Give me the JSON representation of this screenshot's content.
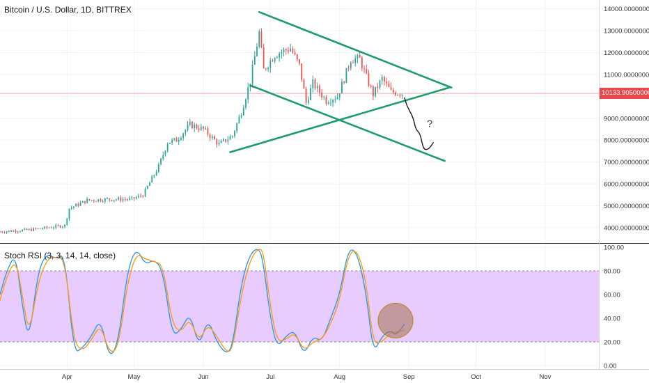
{
  "header": {
    "main_title": "Bitcoin / U.S. Dollar, 1D, BITTREX",
    "indicator_title": "Stoch RSI (3, 3, 14, 14, close)",
    "current_price_label": "10133.905000000",
    "annotation_mark": "?"
  },
  "colors": {
    "up": "#26a69a",
    "down": "#ef5350",
    "trendline": "#1a9c6b",
    "k_line": "#2196f3",
    "d_line": "#ff9800",
    "band_fill": "#e7c6ff",
    "price_line": "#f4a6a8",
    "circle": "#a0704f"
  },
  "chart_data": [
    {
      "type": "candlestick",
      "title": "Bitcoin / U.S. Dollar, 1D, BITTREX",
      "y_ticks": [
        "14000.00000000",
        "13000.00000000",
        "12000.00000000",
        "11000.00000000",
        "10000.00000000",
        "9000.00000000",
        "8000.00000000",
        "7000.00000000",
        "6000.00000000",
        "5000.00000000",
        "4000.00000000"
      ],
      "ylim": [
        3300,
        14400
      ],
      "current_price": 10133.905,
      "x_ticks": [
        "Apr",
        "May",
        "Jun",
        "Jul",
        "Aug",
        "Sep",
        "Oct",
        "Nov"
      ],
      "x_tick_dates": [
        "2019-04-01",
        "2019-05-01",
        "2019-06-01",
        "2019-07-01",
        "2019-08-01",
        "2019-09-01",
        "2019-10-01",
        "2019-11-01"
      ],
      "xlim": [
        "2019-03-02",
        "2019-11-25"
      ],
      "close_path": [
        [
          "2019-03-02",
          3820
        ],
        [
          "2019-03-15",
          3900
        ],
        [
          "2019-03-31",
          4100
        ],
        [
          "2019-04-02",
          4880
        ],
        [
          "2019-04-10",
          5250
        ],
        [
          "2019-04-20",
          5300
        ],
        [
          "2019-04-30",
          5300
        ],
        [
          "2019-05-05",
          5500
        ],
        [
          "2019-05-12",
          6800
        ],
        [
          "2019-05-16",
          7900
        ],
        [
          "2019-05-20",
          8000
        ],
        [
          "2019-05-26",
          8700
        ],
        [
          "2019-06-01",
          8500
        ],
        [
          "2019-06-08",
          7800
        ],
        [
          "2019-06-14",
          8200
        ],
        [
          "2019-06-18",
          9300
        ],
        [
          "2019-06-22",
          10700
        ],
        [
          "2019-06-26",
          12900
        ],
        [
          "2019-06-28",
          11200
        ],
        [
          "2019-07-03",
          11900
        ],
        [
          "2019-07-10",
          12200
        ],
        [
          "2019-07-14",
          11400
        ],
        [
          "2019-07-17",
          9700
        ],
        [
          "2019-07-20",
          10600
        ],
        [
          "2019-07-26",
          9800
        ],
        [
          "2019-07-31",
          10000
        ],
        [
          "2019-08-03",
          10800
        ],
        [
          "2019-08-06",
          11700
        ],
        [
          "2019-08-10",
          11700
        ],
        [
          "2019-08-14",
          10600
        ],
        [
          "2019-08-16",
          10100
        ],
        [
          "2019-08-20",
          10800
        ],
        [
          "2019-08-24",
          10200
        ],
        [
          "2019-08-29",
          10134
        ]
      ],
      "trendlines": [
        {
          "start": [
            "2019-06-26",
            13850
          ],
          "end": [
            "2019-09-20",
            10400
          ]
        },
        {
          "start": [
            "2019-06-22",
            10500
          ],
          "end": [
            "2019-09-17",
            7050
          ]
        },
        {
          "start": [
            "2019-06-13",
            7450
          ],
          "end": [
            "2019-09-19",
            10400
          ]
        }
      ],
      "hand_drawn_path": [
        [
          "2019-08-30",
          9950
        ],
        [
          "2019-08-31",
          9600
        ],
        [
          "2019-09-01",
          9400
        ],
        [
          "2019-09-03",
          9000
        ],
        [
          "2019-09-04",
          8500
        ],
        [
          "2019-09-06",
          8300
        ],
        [
          "2019-09-07",
          7800
        ],
        [
          "2019-09-08",
          7550
        ],
        [
          "2019-09-10",
          7600
        ],
        [
          "2019-09-12",
          7900
        ]
      ]
    },
    {
      "type": "line",
      "title": "Stoch RSI (3, 3, 14, 14, close)",
      "y_ticks": [
        "100.00",
        "80.00",
        "60.00",
        "40.00",
        "20.00",
        "0.00"
      ],
      "ylim": [
        -3,
        103
      ],
      "band": [
        20,
        80
      ],
      "series": [
        {
          "values": [
            [
              "2019-03-02",
              60
            ],
            [
              "2019-03-05",
              80
            ],
            [
              "2019-03-09",
              95
            ],
            [
              "2019-03-12",
              50
            ],
            [
              "2019-03-15",
              20
            ],
            [
              "2019-03-19",
              80
            ],
            [
              "2019-03-23",
              95
            ],
            [
              "2019-03-27",
              90
            ],
            [
              "2019-03-31",
              95
            ],
            [
              "2019-04-04",
              10
            ],
            [
              "2019-04-08",
              15
            ],
            [
              "2019-04-12",
              25
            ],
            [
              "2019-04-16",
              40
            ],
            [
              "2019-04-20",
              5
            ],
            [
              "2019-04-24",
              20
            ],
            [
              "2019-04-28",
              80
            ],
            [
              "2019-05-02",
              100
            ],
            [
              "2019-05-06",
              85
            ],
            [
              "2019-05-10",
              90
            ],
            [
              "2019-05-14",
              80
            ],
            [
              "2019-05-18",
              25
            ],
            [
              "2019-05-22",
              30
            ],
            [
              "2019-05-26",
              45
            ],
            [
              "2019-05-30",
              15
            ],
            [
              "2019-06-03",
              40
            ],
            [
              "2019-06-07",
              20
            ],
            [
              "2019-06-11",
              10
            ],
            [
              "2019-06-14",
              15
            ],
            [
              "2019-06-18",
              70
            ],
            [
              "2019-06-22",
              95
            ],
            [
              "2019-06-26",
              100
            ],
            [
              "2019-06-28",
              85
            ],
            [
              "2019-07-01",
              40
            ],
            [
              "2019-07-04",
              15
            ],
            [
              "2019-07-08",
              25
            ],
            [
              "2019-07-12",
              30
            ],
            [
              "2019-07-16",
              8
            ],
            [
              "2019-07-20",
              25
            ],
            [
              "2019-07-24",
              20
            ],
            [
              "2019-07-28",
              40
            ],
            [
              "2019-08-01",
              60
            ],
            [
              "2019-08-05",
              100
            ],
            [
              "2019-08-09",
              95
            ],
            [
              "2019-08-13",
              60
            ],
            [
              "2019-08-16",
              10
            ],
            [
              "2019-08-20",
              25
            ],
            [
              "2019-08-24",
              30
            ],
            [
              "2019-08-26",
              25
            ],
            [
              "2019-08-30",
              35
            ]
          ]
        },
        {
          "values": [
            [
              "2019-03-02",
              55
            ],
            [
              "2019-03-05",
              75
            ],
            [
              "2019-03-09",
              90
            ],
            [
              "2019-03-12",
              60
            ],
            [
              "2019-03-15",
              25
            ],
            [
              "2019-03-19",
              70
            ],
            [
              "2019-03-23",
              90
            ],
            [
              "2019-03-27",
              92
            ],
            [
              "2019-03-31",
              90
            ],
            [
              "2019-04-04",
              20
            ],
            [
              "2019-04-08",
              12
            ],
            [
              "2019-04-12",
              22
            ],
            [
              "2019-04-16",
              35
            ],
            [
              "2019-04-20",
              10
            ],
            [
              "2019-04-24",
              15
            ],
            [
              "2019-04-28",
              70
            ],
            [
              "2019-05-02",
              95
            ],
            [
              "2019-05-06",
              90
            ],
            [
              "2019-05-10",
              88
            ],
            [
              "2019-05-14",
              85
            ],
            [
              "2019-05-18",
              35
            ],
            [
              "2019-05-22",
              28
            ],
            [
              "2019-05-26",
              40
            ],
            [
              "2019-05-30",
              20
            ],
            [
              "2019-06-03",
              35
            ],
            [
              "2019-06-07",
              25
            ],
            [
              "2019-06-11",
              12
            ],
            [
              "2019-06-14",
              12
            ],
            [
              "2019-06-18",
              60
            ],
            [
              "2019-06-22",
              90
            ],
            [
              "2019-06-26",
              100
            ],
            [
              "2019-06-28",
              95
            ],
            [
              "2019-07-01",
              50
            ],
            [
              "2019-07-04",
              20
            ],
            [
              "2019-07-08",
              22
            ],
            [
              "2019-07-12",
              28
            ],
            [
              "2019-07-16",
              12
            ],
            [
              "2019-07-20",
              20
            ],
            [
              "2019-07-24",
              22
            ],
            [
              "2019-07-28",
              35
            ],
            [
              "2019-08-01",
              55
            ],
            [
              "2019-08-05",
              95
            ],
            [
              "2019-08-09",
              98
            ],
            [
              "2019-08-13",
              70
            ],
            [
              "2019-08-16",
              18
            ],
            [
              "2019-08-20",
              20
            ],
            [
              "2019-08-24",
              28
            ],
            [
              "2019-08-26",
              28
            ],
            [
              "2019-08-30",
              30
            ]
          ]
        }
      ],
      "highlight_circle": {
        "center": [
          "2019-08-26",
          38
        ]
      }
    }
  ]
}
